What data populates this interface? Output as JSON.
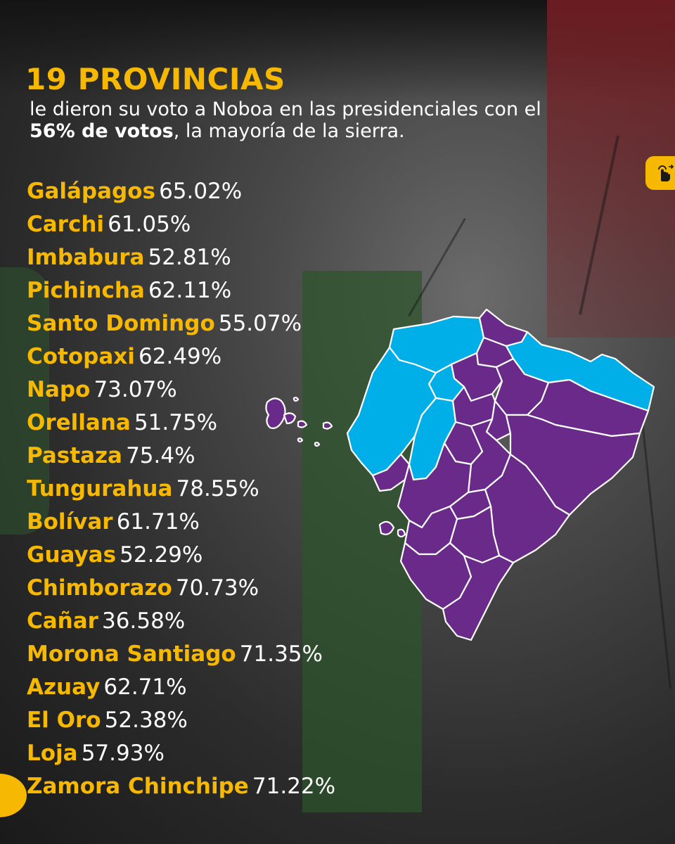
{
  "headline": {
    "title": "19 PROVINCIAS",
    "subtitle_part1": "le dieron su voto a Noboa en las presidenciales con el ",
    "subtitle_bold": "56% de votos",
    "subtitle_part2": ", la mayoría de la sierra."
  },
  "provinces": [
    {
      "name": "Galápagos",
      "pct": "65.02%"
    },
    {
      "name": "Carchi",
      "pct": "61.05%"
    },
    {
      "name": "Imbabura",
      "pct": "52.81%"
    },
    {
      "name": "Pichincha",
      "pct": "62.11%"
    },
    {
      "name": "Santo Domingo",
      "pct": "55.07%"
    },
    {
      "name": "Cotopaxi",
      "pct": "62.49%"
    },
    {
      "name": "Napo",
      "pct": "73.07%"
    },
    {
      "name": "Orellana",
      "pct": "51.75%"
    },
    {
      "name": "Pastaza",
      "pct": "75.4%"
    },
    {
      "name": "Tungurahua",
      "pct": "78.55%"
    },
    {
      "name": "Bolívar",
      "pct": "61.71%"
    },
    {
      "name": "Guayas",
      "pct": "52.29%"
    },
    {
      "name": "Chimborazo",
      "pct": "70.73%"
    },
    {
      "name": "Cañar",
      "pct": "36.58%"
    },
    {
      "name": "Morona Santiago",
      "pct": "71.35%"
    },
    {
      "name": "Azuay",
      "pct": "62.71%"
    },
    {
      "name": "El Oro",
      "pct": "52.38%"
    },
    {
      "name": "Loja",
      "pct": "57.93%"
    },
    {
      "name": "Zamora Chinchipe",
      "pct": "71.22%"
    }
  ],
  "map": {
    "noboa_color": "#6a2a8a",
    "other_color": "#00aee8",
    "border_color": "#ffffff"
  },
  "colors": {
    "accent": "#f6b800",
    "text": "#ffffff",
    "flag_red": "#7a1e23",
    "flag_green": "#2d552d"
  },
  "icons": {
    "touch_badge": "tap-hand-icon"
  }
}
